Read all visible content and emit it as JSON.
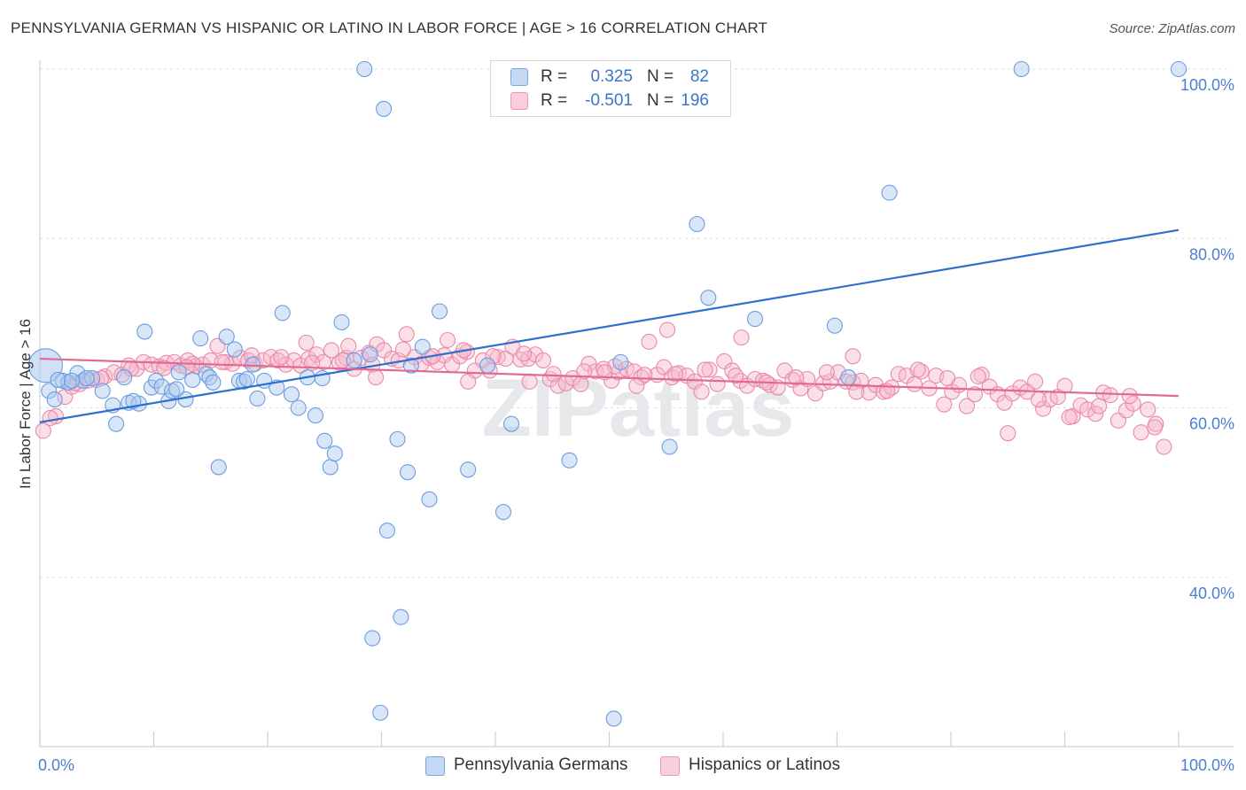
{
  "title": "PENNSYLVANIA GERMAN VS HISPANIC OR LATINO IN LABOR FORCE | AGE > 16 CORRELATION CHART",
  "source": "Source: ZipAtlas.com",
  "watermark": "ZIPatlas",
  "legend_top": {
    "rows": [
      {
        "r_label": "R =",
        "r_value": "0.325",
        "n_label": "N =",
        "n_value": "82",
        "color": "#aac8f0"
      },
      {
        "r_label": "R =",
        "r_value": "-0.501",
        "n_label": "N =",
        "n_value": "196",
        "color": "#f6b8cc"
      }
    ]
  },
  "legend_bottom": [
    {
      "label": "Pennsylvania Germans",
      "color": "#aac8f0"
    },
    {
      "label": "Hispanics or Latinos",
      "color": "#f6b8cc"
    }
  ],
  "colors": {
    "blue_fill": "#aac8f0",
    "blue_stroke": "#6b9de0",
    "blue_line": "#2e6fd0",
    "pink_fill": "#f6b8cc",
    "pink_stroke": "#e98aa8",
    "pink_line": "#e06a92",
    "axis_text": "#4a7fd0",
    "grid": "#dddddd"
  },
  "chart_data": {
    "type": "scatter",
    "title": "PENNSYLVANIA GERMAN VS HISPANIC OR LATINO IN LABOR FORCE | AGE > 16 CORRELATION CHART",
    "xlabel": "",
    "ylabel": "In Labor Force | Age > 16",
    "xlim": [
      0,
      100
    ],
    "ylim": [
      20,
      102
    ],
    "x_tick_labels": [
      "0.0%",
      "100.0%"
    ],
    "y_ticks": [
      40,
      60,
      80,
      100
    ],
    "y_tick_labels": [
      "40.0%",
      "60.0%",
      "80.0%",
      "100.0%"
    ],
    "grid": true,
    "legend_position": "bottom",
    "series": [
      {
        "name": "Pennsylvania Germans",
        "r": 0.325,
        "n": 82,
        "trend": {
          "x": [
            0,
            100
          ],
          "y": [
            58.3,
            81.0
          ]
        },
        "points": [
          [
            0.5,
            65.0
          ],
          [
            0.8,
            62.0
          ],
          [
            1.3,
            61.0
          ],
          [
            2.0,
            63.2
          ],
          [
            2.5,
            63.0
          ],
          [
            3.3,
            64.1
          ],
          [
            3.8,
            63.2
          ],
          [
            4.6,
            63.5
          ],
          [
            5.5,
            62.0
          ],
          [
            6.7,
            58.1
          ],
          [
            6.4,
            60.3
          ],
          [
            7.4,
            63.6
          ],
          [
            7.8,
            60.6
          ],
          [
            8.7,
            60.5
          ],
          [
            9.2,
            69.0
          ],
          [
            9.8,
            62.4
          ],
          [
            10.2,
            63.2
          ],
          [
            10.7,
            62.5
          ],
          [
            11.3,
            60.8
          ],
          [
            11.6,
            62.0
          ],
          [
            12.2,
            64.2
          ],
          [
            12.8,
            61.0
          ],
          [
            13.4,
            63.3
          ],
          [
            14.1,
            68.2
          ],
          [
            14.6,
            64.0
          ],
          [
            14.9,
            63.6
          ],
          [
            15.7,
            53.0
          ],
          [
            16.4,
            68.4
          ],
          [
            17.1,
            66.9
          ],
          [
            17.5,
            63.2
          ],
          [
            17.9,
            63.1
          ],
          [
            18.7,
            65.1
          ],
          [
            19.1,
            61.1
          ],
          [
            19.7,
            63.2
          ],
          [
            20.8,
            62.4
          ],
          [
            21.3,
            71.2
          ],
          [
            22.1,
            61.6
          ],
          [
            22.7,
            60.0
          ],
          [
            23.5,
            63.6
          ],
          [
            24.2,
            59.1
          ],
          [
            24.8,
            63.5
          ],
          [
            25.0,
            56.1
          ],
          [
            25.5,
            53.0
          ],
          [
            25.9,
            54.6
          ],
          [
            26.5,
            70.1
          ],
          [
            27.6,
            65.6
          ],
          [
            29.0,
            66.3
          ],
          [
            28.5,
            100.0
          ],
          [
            30.2,
            95.3
          ],
          [
            29.9,
            24.0
          ],
          [
            29.2,
            32.8
          ],
          [
            30.5,
            45.5
          ],
          [
            31.4,
            56.3
          ],
          [
            31.7,
            35.3
          ],
          [
            32.3,
            52.4
          ],
          [
            32.6,
            65.0
          ],
          [
            33.6,
            67.2
          ],
          [
            34.2,
            49.2
          ],
          [
            35.1,
            71.4
          ],
          [
            37.6,
            52.7
          ],
          [
            39.3,
            65.0
          ],
          [
            40.7,
            47.7
          ],
          [
            41.4,
            58.1
          ],
          [
            46.5,
            53.8
          ],
          [
            50.4,
            23.3
          ],
          [
            51.0,
            65.4
          ],
          [
            55.3,
            55.4
          ],
          [
            57.7,
            81.7
          ],
          [
            58.7,
            73.0
          ],
          [
            62.8,
            70.5
          ],
          [
            69.8,
            69.7
          ],
          [
            71.0,
            63.6
          ],
          [
            74.6,
            85.4
          ],
          [
            86.2,
            100.0
          ],
          [
            100.0,
            100.0
          ],
          [
            1.6,
            63.3
          ],
          [
            4.1,
            63.5
          ],
          [
            12.0,
            62.2
          ],
          [
            2.8,
            63.2
          ],
          [
            8.2,
            60.8
          ],
          [
            15.2,
            63.0
          ],
          [
            18.2,
            63.4
          ]
        ]
      },
      {
        "name": "Hispanics or Latinos",
        "r": -0.501,
        "n": 196,
        "trend": {
          "x": [
            0,
            100
          ],
          "y": [
            65.8,
            61.4
          ]
        },
        "points": [
          [
            0.3,
            57.3
          ],
          [
            1.4,
            59.0
          ],
          [
            2.2,
            61.3
          ],
          [
            2.8,
            62.5
          ],
          [
            3.5,
            62.8
          ],
          [
            4.2,
            63.2
          ],
          [
            5.0,
            63.3
          ],
          [
            5.7,
            63.7
          ],
          [
            6.5,
            64.2
          ],
          [
            7.2,
            63.9
          ],
          [
            7.8,
            65.0
          ],
          [
            8.5,
            64.6
          ],
          [
            9.1,
            65.4
          ],
          [
            9.8,
            65.1
          ],
          [
            10.5,
            64.9
          ],
          [
            11.1,
            65.3
          ],
          [
            11.8,
            65.4
          ],
          [
            12.4,
            65.0
          ],
          [
            13.0,
            65.6
          ],
          [
            13.7,
            64.9
          ],
          [
            14.3,
            65.1
          ],
          [
            15.0,
            65.6
          ],
          [
            15.6,
            67.3
          ],
          [
            16.3,
            65.4
          ],
          [
            16.9,
            65.2
          ],
          [
            17.6,
            65.9
          ],
          [
            18.3,
            65.6
          ],
          [
            18.9,
            65.2
          ],
          [
            19.6,
            65.6
          ],
          [
            20.3,
            66.0
          ],
          [
            20.9,
            65.6
          ],
          [
            21.6,
            65.1
          ],
          [
            22.3,
            65.6
          ],
          [
            22.9,
            65.0
          ],
          [
            23.6,
            65.8
          ],
          [
            24.3,
            66.3
          ],
          [
            24.9,
            65.4
          ],
          [
            25.6,
            66.8
          ],
          [
            26.3,
            65.3
          ],
          [
            26.9,
            65.9
          ],
          [
            27.6,
            64.6
          ],
          [
            28.2,
            65.9
          ],
          [
            28.9,
            66.5
          ],
          [
            29.6,
            67.5
          ],
          [
            30.2,
            66.8
          ],
          [
            30.9,
            65.8
          ],
          [
            31.5,
            65.6
          ],
          [
            32.2,
            68.7
          ],
          [
            32.9,
            66.0
          ],
          [
            33.5,
            65.2
          ],
          [
            34.2,
            65.9
          ],
          [
            34.9,
            65.4
          ],
          [
            35.5,
            66.2
          ],
          [
            36.2,
            65.1
          ],
          [
            36.9,
            66.1
          ],
          [
            37.5,
            66.6
          ],
          [
            38.2,
            64.4
          ],
          [
            38.9,
            65.6
          ],
          [
            39.5,
            64.4
          ],
          [
            40.2,
            66.0
          ],
          [
            40.9,
            65.8
          ],
          [
            41.5,
            67.2
          ],
          [
            42.2,
            65.7
          ],
          [
            42.9,
            65.8
          ],
          [
            43.5,
            66.3
          ],
          [
            44.2,
            65.6
          ],
          [
            44.8,
            63.4
          ],
          [
            45.5,
            62.6
          ],
          [
            46.2,
            62.9
          ],
          [
            46.8,
            63.5
          ],
          [
            47.5,
            62.8
          ],
          [
            48.2,
            65.2
          ],
          [
            48.8,
            64.3
          ],
          [
            49.5,
            64.6
          ],
          [
            50.2,
            63.2
          ],
          [
            50.8,
            64.2
          ],
          [
            51.5,
            64.6
          ],
          [
            52.2,
            64.3
          ],
          [
            52.8,
            63.6
          ],
          [
            53.5,
            67.8
          ],
          [
            54.2,
            63.9
          ],
          [
            54.8,
            64.8
          ],
          [
            55.5,
            63.6
          ],
          [
            56.1,
            64.1
          ],
          [
            56.8,
            63.8
          ],
          [
            57.5,
            63.1
          ],
          [
            58.1,
            61.9
          ],
          [
            58.8,
            64.5
          ],
          [
            59.5,
            62.8
          ],
          [
            60.1,
            65.5
          ],
          [
            60.8,
            64.4
          ],
          [
            61.5,
            63.2
          ],
          [
            62.1,
            62.6
          ],
          [
            62.8,
            63.4
          ],
          [
            63.5,
            63.2
          ],
          [
            64.1,
            62.7
          ],
          [
            64.8,
            62.4
          ],
          [
            65.4,
            64.4
          ],
          [
            66.1,
            63.3
          ],
          [
            66.8,
            62.3
          ],
          [
            67.4,
            63.4
          ],
          [
            68.1,
            61.7
          ],
          [
            68.8,
            62.9
          ],
          [
            69.4,
            63.1
          ],
          [
            70.1,
            64.2
          ],
          [
            70.8,
            63.1
          ],
          [
            71.4,
            63.0
          ],
          [
            72.1,
            63.2
          ],
          [
            72.8,
            61.8
          ],
          [
            73.4,
            62.7
          ],
          [
            74.1,
            61.9
          ],
          [
            74.8,
            62.4
          ],
          [
            75.4,
            64.0
          ],
          [
            76.1,
            63.8
          ],
          [
            76.8,
            62.8
          ],
          [
            77.4,
            64.3
          ],
          [
            78.1,
            62.3
          ],
          [
            78.7,
            63.8
          ],
          [
            79.4,
            60.4
          ],
          [
            80.1,
            61.9
          ],
          [
            80.7,
            62.7
          ],
          [
            81.4,
            60.2
          ],
          [
            82.1,
            61.6
          ],
          [
            82.7,
            63.9
          ],
          [
            83.4,
            62.5
          ],
          [
            84.1,
            61.6
          ],
          [
            84.7,
            60.6
          ],
          [
            85.4,
            61.7
          ],
          [
            86.1,
            62.4
          ],
          [
            86.7,
            61.9
          ],
          [
            87.4,
            63.1
          ],
          [
            88.1,
            59.9
          ],
          [
            88.7,
            61.0
          ],
          [
            89.4,
            61.3
          ],
          [
            90.0,
            62.6
          ],
          [
            90.7,
            59.0
          ],
          [
            91.4,
            60.3
          ],
          [
            92.0,
            59.8
          ],
          [
            92.7,
            59.3
          ],
          [
            93.4,
            61.8
          ],
          [
            94.0,
            61.5
          ],
          [
            94.7,
            58.5
          ],
          [
            95.4,
            59.7
          ],
          [
            96.0,
            60.5
          ],
          [
            96.7,
            57.1
          ],
          [
            97.3,
            59.8
          ],
          [
            98.0,
            58.1
          ],
          [
            98.7,
            55.4
          ],
          [
            0.9,
            58.8
          ],
          [
            3.1,
            62.9
          ],
          [
            5.4,
            63.5
          ],
          [
            8.0,
            64.6
          ],
          [
            10.9,
            64.7
          ],
          [
            13.4,
            65.2
          ],
          [
            16.0,
            65.4
          ],
          [
            18.6,
            66.2
          ],
          [
            21.2,
            66.0
          ],
          [
            23.9,
            65.3
          ],
          [
            26.6,
            65.6
          ],
          [
            29.2,
            65.1
          ],
          [
            31.9,
            66.9
          ],
          [
            34.5,
            66.1
          ],
          [
            37.2,
            66.8
          ],
          [
            39.8,
            66.1
          ],
          [
            42.5,
            66.4
          ],
          [
            45.1,
            64.0
          ],
          [
            47.8,
            64.3
          ],
          [
            50.5,
            64.9
          ],
          [
            53.1,
            63.9
          ],
          [
            55.8,
            64.0
          ],
          [
            58.4,
            64.5
          ],
          [
            61.1,
            63.8
          ],
          [
            63.8,
            63.0
          ],
          [
            66.4,
            63.6
          ],
          [
            69.1,
            64.2
          ],
          [
            71.7,
            61.9
          ],
          [
            74.4,
            62.0
          ],
          [
            77.1,
            64.5
          ],
          [
            79.7,
            63.5
          ],
          [
            82.4,
            63.7
          ],
          [
            85.0,
            57.0
          ],
          [
            87.7,
            61.0
          ],
          [
            90.4,
            58.9
          ],
          [
            93.0,
            60.2
          ],
          [
            95.7,
            61.4
          ],
          [
            97.9,
            57.7
          ],
          [
            61.6,
            68.3
          ],
          [
            71.4,
            66.1
          ],
          [
            55.1,
            69.2
          ],
          [
            49.6,
            64.2
          ],
          [
            29.5,
            63.6
          ],
          [
            43.0,
            63.1
          ],
          [
            27.1,
            67.3
          ],
          [
            35.8,
            68.0
          ],
          [
            12.9,
            64.8
          ],
          [
            37.6,
            63.1
          ],
          [
            23.4,
            67.7
          ],
          [
            52.4,
            62.6
          ]
        ]
      }
    ]
  }
}
